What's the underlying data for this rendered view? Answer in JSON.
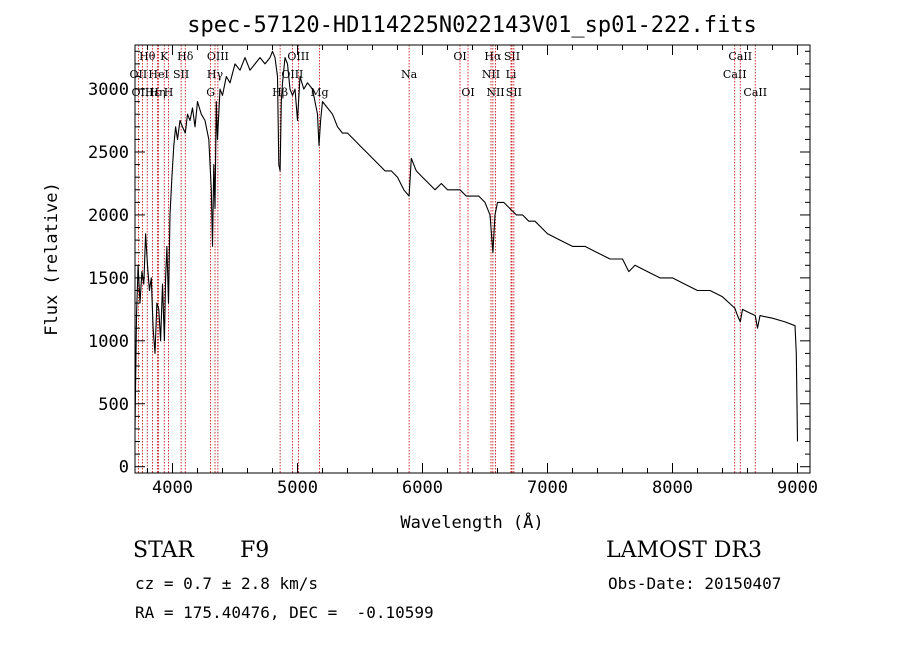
{
  "chart_data": {
    "type": "line",
    "title": "spec-57120-HD114225N022143V01_sp01-222.fits",
    "xlabel": "Wavelength (Å)",
    "ylabel": "Flux (relative)",
    "xlim": [
      3700,
      9100
    ],
    "ylim": [
      -50,
      3350
    ],
    "xticks": [
      4000,
      5000,
      6000,
      7000,
      8000,
      9000
    ],
    "xtick_labels": [
      "4000",
      "5000",
      "6000",
      "7000",
      "8000",
      "9000"
    ],
    "yticks": [
      0,
      500,
      1000,
      1500,
      2000,
      2500,
      3000
    ],
    "ytick_labels": [
      "0",
      "500",
      "1000",
      "1500",
      "2000",
      "2500",
      "3000"
    ],
    "series": [
      {
        "name": "spectrum",
        "x": [
          3700,
          3712,
          3725,
          3740,
          3755,
          3770,
          3785,
          3800,
          3815,
          3830,
          3845,
          3860,
          3875,
          3890,
          3905,
          3920,
          3935,
          3945,
          3955,
          3968,
          3980,
          3995,
          4010,
          4025,
          4040,
          4060,
          4080,
          4102,
          4120,
          4140,
          4160,
          4180,
          4200,
          4230,
          4260,
          4290,
          4310,
          4320,
          4330,
          4340,
          4350,
          4360,
          4380,
          4400,
          4430,
          4460,
          4500,
          4540,
          4580,
          4620,
          4660,
          4700,
          4740,
          4780,
          4800,
          4820,
          4840,
          4850,
          4861,
          4870,
          4880,
          4900,
          4920,
          4940,
          4960,
          4980,
          5000,
          5020,
          5050,
          5080,
          5120,
          5160,
          5172,
          5185,
          5200,
          5240,
          5280,
          5320,
          5360,
          5400,
          5450,
          5500,
          5550,
          5600,
          5650,
          5700,
          5750,
          5800,
          5850,
          5893,
          5910,
          5950,
          6000,
          6050,
          6100,
          6150,
          6200,
          6250,
          6300,
          6350,
          6400,
          6450,
          6500,
          6540,
          6563,
          6580,
          6600,
          6650,
          6700,
          6750,
          6800,
          6850,
          6900,
          6950,
          7000,
          7100,
          7200,
          7300,
          7400,
          7500,
          7600,
          7650,
          7700,
          7800,
          7900,
          8000,
          8100,
          8200,
          8300,
          8400,
          8498,
          8520,
          8542,
          8560,
          8600,
          8662,
          8680,
          8700,
          8800,
          8900,
          8980,
          8990,
          9000
        ],
        "y": [
          300,
          1200,
          1600,
          1300,
          1550,
          1450,
          1850,
          1600,
          1400,
          1500,
          1100,
          900,
          1300,
          1250,
          1000,
          1450,
          1000,
          1500,
          1750,
          1300,
          2000,
          2300,
          2550,
          2700,
          2600,
          2750,
          2700,
          2650,
          2800,
          2750,
          2850,
          2700,
          2900,
          2800,
          2750,
          2600,
          2200,
          1750,
          2400,
          2050,
          2900,
          2600,
          3000,
          2950,
          3100,
          3050,
          3200,
          3150,
          3250,
          3150,
          3200,
          3250,
          3200,
          3250,
          3300,
          3250,
          3100,
          2400,
          2350,
          2900,
          3050,
          3250,
          3200,
          3000,
          2950,
          3000,
          2750,
          3100,
          3000,
          3050,
          3000,
          2800,
          2550,
          2750,
          2900,
          2850,
          2800,
          2700,
          2650,
          2650,
          2600,
          2550,
          2500,
          2450,
          2400,
          2350,
          2350,
          2300,
          2200,
          2150,
          2450,
          2350,
          2300,
          2250,
          2200,
          2250,
          2200,
          2200,
          2200,
          2150,
          2150,
          2150,
          2100,
          2000,
          1700,
          2000,
          2100,
          2100,
          2050,
          2000,
          2000,
          1950,
          1950,
          1900,
          1850,
          1800,
          1750,
          1750,
          1700,
          1650,
          1650,
          1550,
          1600,
          1550,
          1500,
          1500,
          1450,
          1400,
          1400,
          1350,
          1260,
          1200,
          1150,
          1250,
          1230,
          1200,
          1100,
          1200,
          1180,
          1150,
          1120,
          900,
          200
        ]
      }
    ],
    "emission_lines": [
      {
        "label": "Hθ",
        "wl": 3798,
        "row": 0
      },
      {
        "label": "OII",
        "wl": 3727,
        "row": 1
      },
      {
        "label": "OIII",
        "wl": 3760,
        "row": 2
      },
      {
        "label": "Hε",
        "wl": 3840,
        "row": 2
      },
      {
        "label": "K",
        "wl": 3934,
        "row": 0
      },
      {
        "label": "HeI",
        "wl": 3889,
        "row": 1
      },
      {
        "label": "SII",
        "wl": 4069,
        "row": 1
      },
      {
        "label": "Hη",
        "wl": 3880,
        "row": 2
      },
      {
        "label": "H",
        "wl": 3968,
        "row": 2
      },
      {
        "label": "Hδ",
        "wl": 4102,
        "row": 0
      },
      {
        "label": "OIII",
        "wl": 4363,
        "row": 0
      },
      {
        "label": "Hγ",
        "wl": 4340,
        "row": 1
      },
      {
        "label": "G",
        "wl": 4305,
        "row": 2
      },
      {
        "label": "OIII",
        "wl": 5007,
        "row": 0
      },
      {
        "label": "OIII",
        "wl": 4959,
        "row": 1
      },
      {
        "label": "Hβ",
        "wl": 4861,
        "row": 2
      },
      {
        "label": "Mg",
        "wl": 5175,
        "row": 2
      },
      {
        "label": "Na",
        "wl": 5893,
        "row": 1
      },
      {
        "label": "OI",
        "wl": 6300,
        "row": 0
      },
      {
        "label": "OI",
        "wl": 6364,
        "row": 2
      },
      {
        "label": "Hα",
        "wl": 6563,
        "row": 0
      },
      {
        "label": "SII",
        "wl": 6716,
        "row": 0
      },
      {
        "label": "NII",
        "wl": 6548,
        "row": 1
      },
      {
        "label": "Li",
        "wl": 6708,
        "row": 1
      },
      {
        "label": "NII",
        "wl": 6584,
        "row": 2
      },
      {
        "label": "SII",
        "wl": 6731,
        "row": 2
      },
      {
        "label": "CaII",
        "wl": 8542,
        "row": 0
      },
      {
        "label": "CaII",
        "wl": 8498,
        "row": 1
      },
      {
        "label": "CaII",
        "wl": 8662,
        "row": 2
      }
    ]
  },
  "info": {
    "class_text": "STAR",
    "subclass_text": "F9",
    "survey_text": "LAMOST DR3",
    "cz_text": "cz = 0.7 ± 2.8 km/s",
    "obs_date_text": "Obs-Date: 20150407",
    "radec_text": "RA = 175.40476, DEC =  -0.10599"
  }
}
